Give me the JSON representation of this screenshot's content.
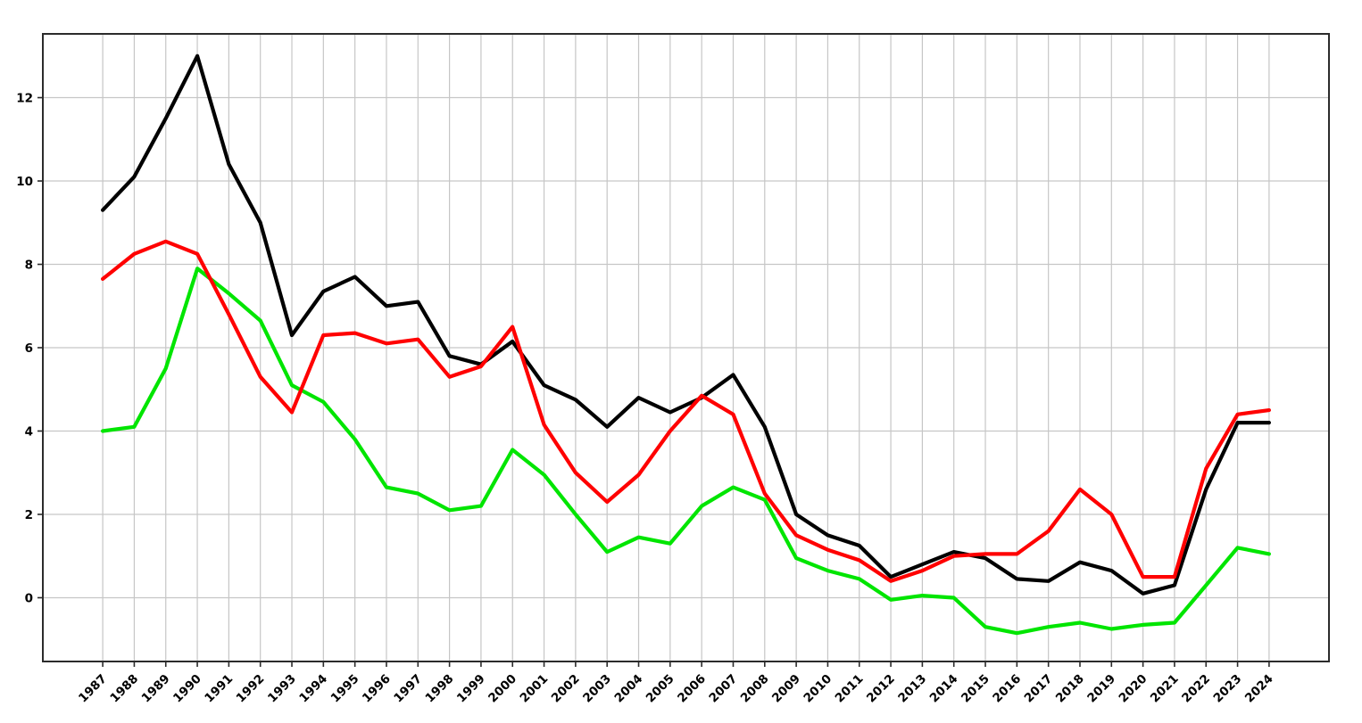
{
  "chart_data": {
    "type": "line",
    "title": "",
    "xlabel": "",
    "ylabel": "",
    "grid": true,
    "legend": "none",
    "x": [
      1987,
      1988,
      1989,
      1990,
      1991,
      1992,
      1993,
      1994,
      1995,
      1996,
      1997,
      1998,
      1999,
      2000,
      2001,
      2002,
      2003,
      2004,
      2005,
      2006,
      2007,
      2008,
      2009,
      2010,
      2011,
      2012,
      2013,
      2014,
      2015,
      2016,
      2017,
      2018,
      2019,
      2020,
      2021,
      2022,
      2023,
      2024
    ],
    "series": [
      {
        "name": "black-series",
        "color": "#000000",
        "values": [
          9.3,
          10.1,
          11.5,
          13.0,
          10.4,
          9.0,
          6.3,
          7.35,
          7.7,
          7.0,
          7.1,
          5.8,
          5.6,
          6.15,
          5.1,
          4.75,
          4.1,
          4.8,
          4.45,
          4.8,
          5.35,
          4.1,
          2.0,
          1.5,
          1.25,
          0.5,
          0.8,
          1.1,
          0.95,
          0.45,
          0.4,
          0.85,
          0.65,
          0.1,
          0.3,
          2.6,
          4.2,
          4.2
        ]
      },
      {
        "name": "red-series",
        "color": "#FF0000",
        "values": [
          7.65,
          8.25,
          8.55,
          8.25,
          6.8,
          5.3,
          4.45,
          6.3,
          6.35,
          6.1,
          6.2,
          5.3,
          5.55,
          6.5,
          4.15,
          3.0,
          2.3,
          2.95,
          4.0,
          4.85,
          4.4,
          2.5,
          1.5,
          1.15,
          0.9,
          0.4,
          0.65,
          1.0,
          1.05,
          1.05,
          1.6,
          2.6,
          2.0,
          0.5,
          0.5,
          3.1,
          4.4,
          4.5
        ]
      },
      {
        "name": "green-series",
        "color": "#00E500",
        "values": [
          4.0,
          4.1,
          5.5,
          7.9,
          7.3,
          6.65,
          5.1,
          4.7,
          3.8,
          2.65,
          2.5,
          2.1,
          2.2,
          3.55,
          2.95,
          2.0,
          1.1,
          1.45,
          1.3,
          2.2,
          2.65,
          2.35,
          0.95,
          0.65,
          0.45,
          -0.05,
          0.05,
          0.0,
          -0.7,
          -0.85,
          -0.7,
          -0.6,
          -0.75,
          -0.65,
          -0.6,
          0.3,
          1.2,
          1.05
        ]
      }
    ],
    "draw_order": [
      "black-series",
      "green-series",
      "red-series"
    ],
    "xlim": [
      1985.1,
      2025.9
    ],
    "ylim": [
      -1.53,
      13.53
    ],
    "yticks": [
      0,
      2,
      4,
      6,
      8,
      10,
      12
    ],
    "xtick_labels": [
      "1987",
      "1988",
      "1989",
      "1990",
      "1991",
      "1992",
      "1993",
      "1994",
      "1995",
      "1996",
      "1997",
      "1998",
      "1999",
      "2000",
      "2001",
      "2002",
      "2003",
      "2004",
      "2005",
      "2006",
      "2007",
      "2008",
      "2009",
      "2010",
      "2011",
      "2012",
      "2013",
      "2014",
      "2015",
      "2016",
      "2017",
      "2018",
      "2019",
      "2020",
      "2021",
      "2022",
      "2023",
      "2024"
    ],
    "ytick_labels": [
      "0",
      "2",
      "4",
      "6",
      "8",
      "10",
      "12"
    ],
    "grid_color": "#c6c6c6",
    "spine_color": "#2b2b2b",
    "tick_label_color": "#000000",
    "background_color": "#ffffff",
    "line_width": 4.2
  }
}
